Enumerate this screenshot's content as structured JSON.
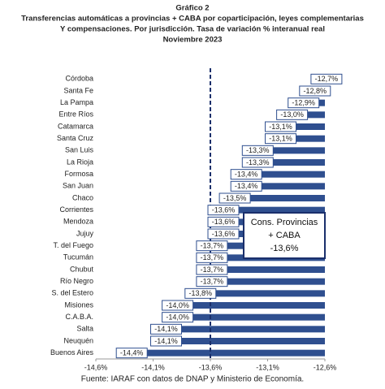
{
  "chart_data": {
    "type": "barh",
    "title": "Gráfico 2",
    "subtitle": [
      "Transferencias automáticas a provincias + CABA por coparticipación, leyes complementarias",
      "Y compensaciones. Por jurisdicción. Tasa de variación % interanual real",
      "Noviembre 2023"
    ],
    "categories": [
      "Córdoba",
      "Santa Fe",
      "La Pampa",
      "Entre Ríos",
      "Catamarca",
      "Santa Cruz",
      "San Luis",
      "La Rioja",
      "Formosa",
      "San Juan",
      "Chaco",
      "Corrientes",
      "Mendoza",
      "Jujuy",
      "T. del Fuego",
      "Tucumán",
      "Chubut",
      "Río Negro",
      "S. del Estero",
      "Misiones",
      "C.A.B.A.",
      "Salta",
      "Neuquén",
      "Buenos Aires"
    ],
    "values": [
      -12.7,
      -12.8,
      -12.9,
      -13.0,
      -13.1,
      -13.1,
      -13.3,
      -13.3,
      -13.4,
      -13.4,
      -13.5,
      -13.6,
      -13.6,
      -13.6,
      -13.7,
      -13.7,
      -13.7,
      -13.7,
      -13.8,
      -14.0,
      -14.0,
      -14.1,
      -14.1,
      -14.4
    ],
    "value_labels": [
      "-12,7%",
      "-12,8%",
      "-12,9%",
      "-13,0%",
      "-13,1%",
      "-13,1%",
      "-13,3%",
      "-13,3%",
      "-13,4%",
      "-13,4%",
      "-13,5%",
      "-13,6%",
      "-13,6%",
      "-13,6%",
      "-13,7%",
      "-13,7%",
      "-13,7%",
      "-13,7%",
      "-13,8%",
      "-14,0%",
      "-14,0%",
      "-14,1%",
      "-14,1%",
      "-14,4%"
    ],
    "color": "#2f4f8f",
    "xlim": [
      -14.6,
      -12.6
    ],
    "xticks": [
      {
        "value": -14.6,
        "label": "-14,6%"
      },
      {
        "value": -14.1,
        "label": "-14,1%"
      },
      {
        "value": -13.6,
        "label": "-13,6%"
      },
      {
        "value": -13.1,
        "label": "-13,1%"
      },
      {
        "value": -12.6,
        "label": "-12,6%"
      }
    ],
    "reference_value": -13.6,
    "annotation": [
      "Cons. Provincias",
      "+ CABA",
      "-13,6%"
    ],
    "source": "Fuente: IARAF con datos de DNAP y Ministerio de Economía."
  }
}
